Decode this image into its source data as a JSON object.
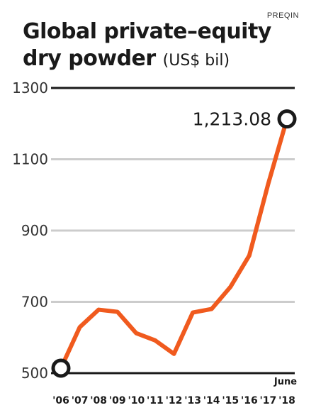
{
  "source": "PREQIN",
  "title_line1": "Global private–equity",
  "title_line2": "dry powder",
  "title_unit": "(US$ bil)",
  "chart_data": {
    "type": "line",
    "title": "Global private–equity dry powder (US$ bil)",
    "categories": [
      "'06",
      "'07",
      "'08",
      "'09",
      "'10",
      "'11",
      "'12",
      "'13",
      "'14",
      "'15",
      "'16",
      "'17",
      "'18"
    ],
    "x_extra_label": "June",
    "series": [
      {
        "values": [
          514,
          629,
          678,
          672,
          612,
          592,
          554,
          670,
          680,
          742,
          830,
          1030,
          1213.08
        ]
      }
    ],
    "ylim": [
      500,
      1300
    ],
    "yticks": [
      500,
      700,
      900,
      1100,
      1300
    ],
    "yticklabels": [
      "500",
      "700",
      "900",
      "1100",
      "1300"
    ],
    "annotation": "1,213.08",
    "grid": true,
    "line_color": "#f05a1e",
    "grid_color": "#cccccc",
    "axis_color": "#1a1a1a"
  }
}
